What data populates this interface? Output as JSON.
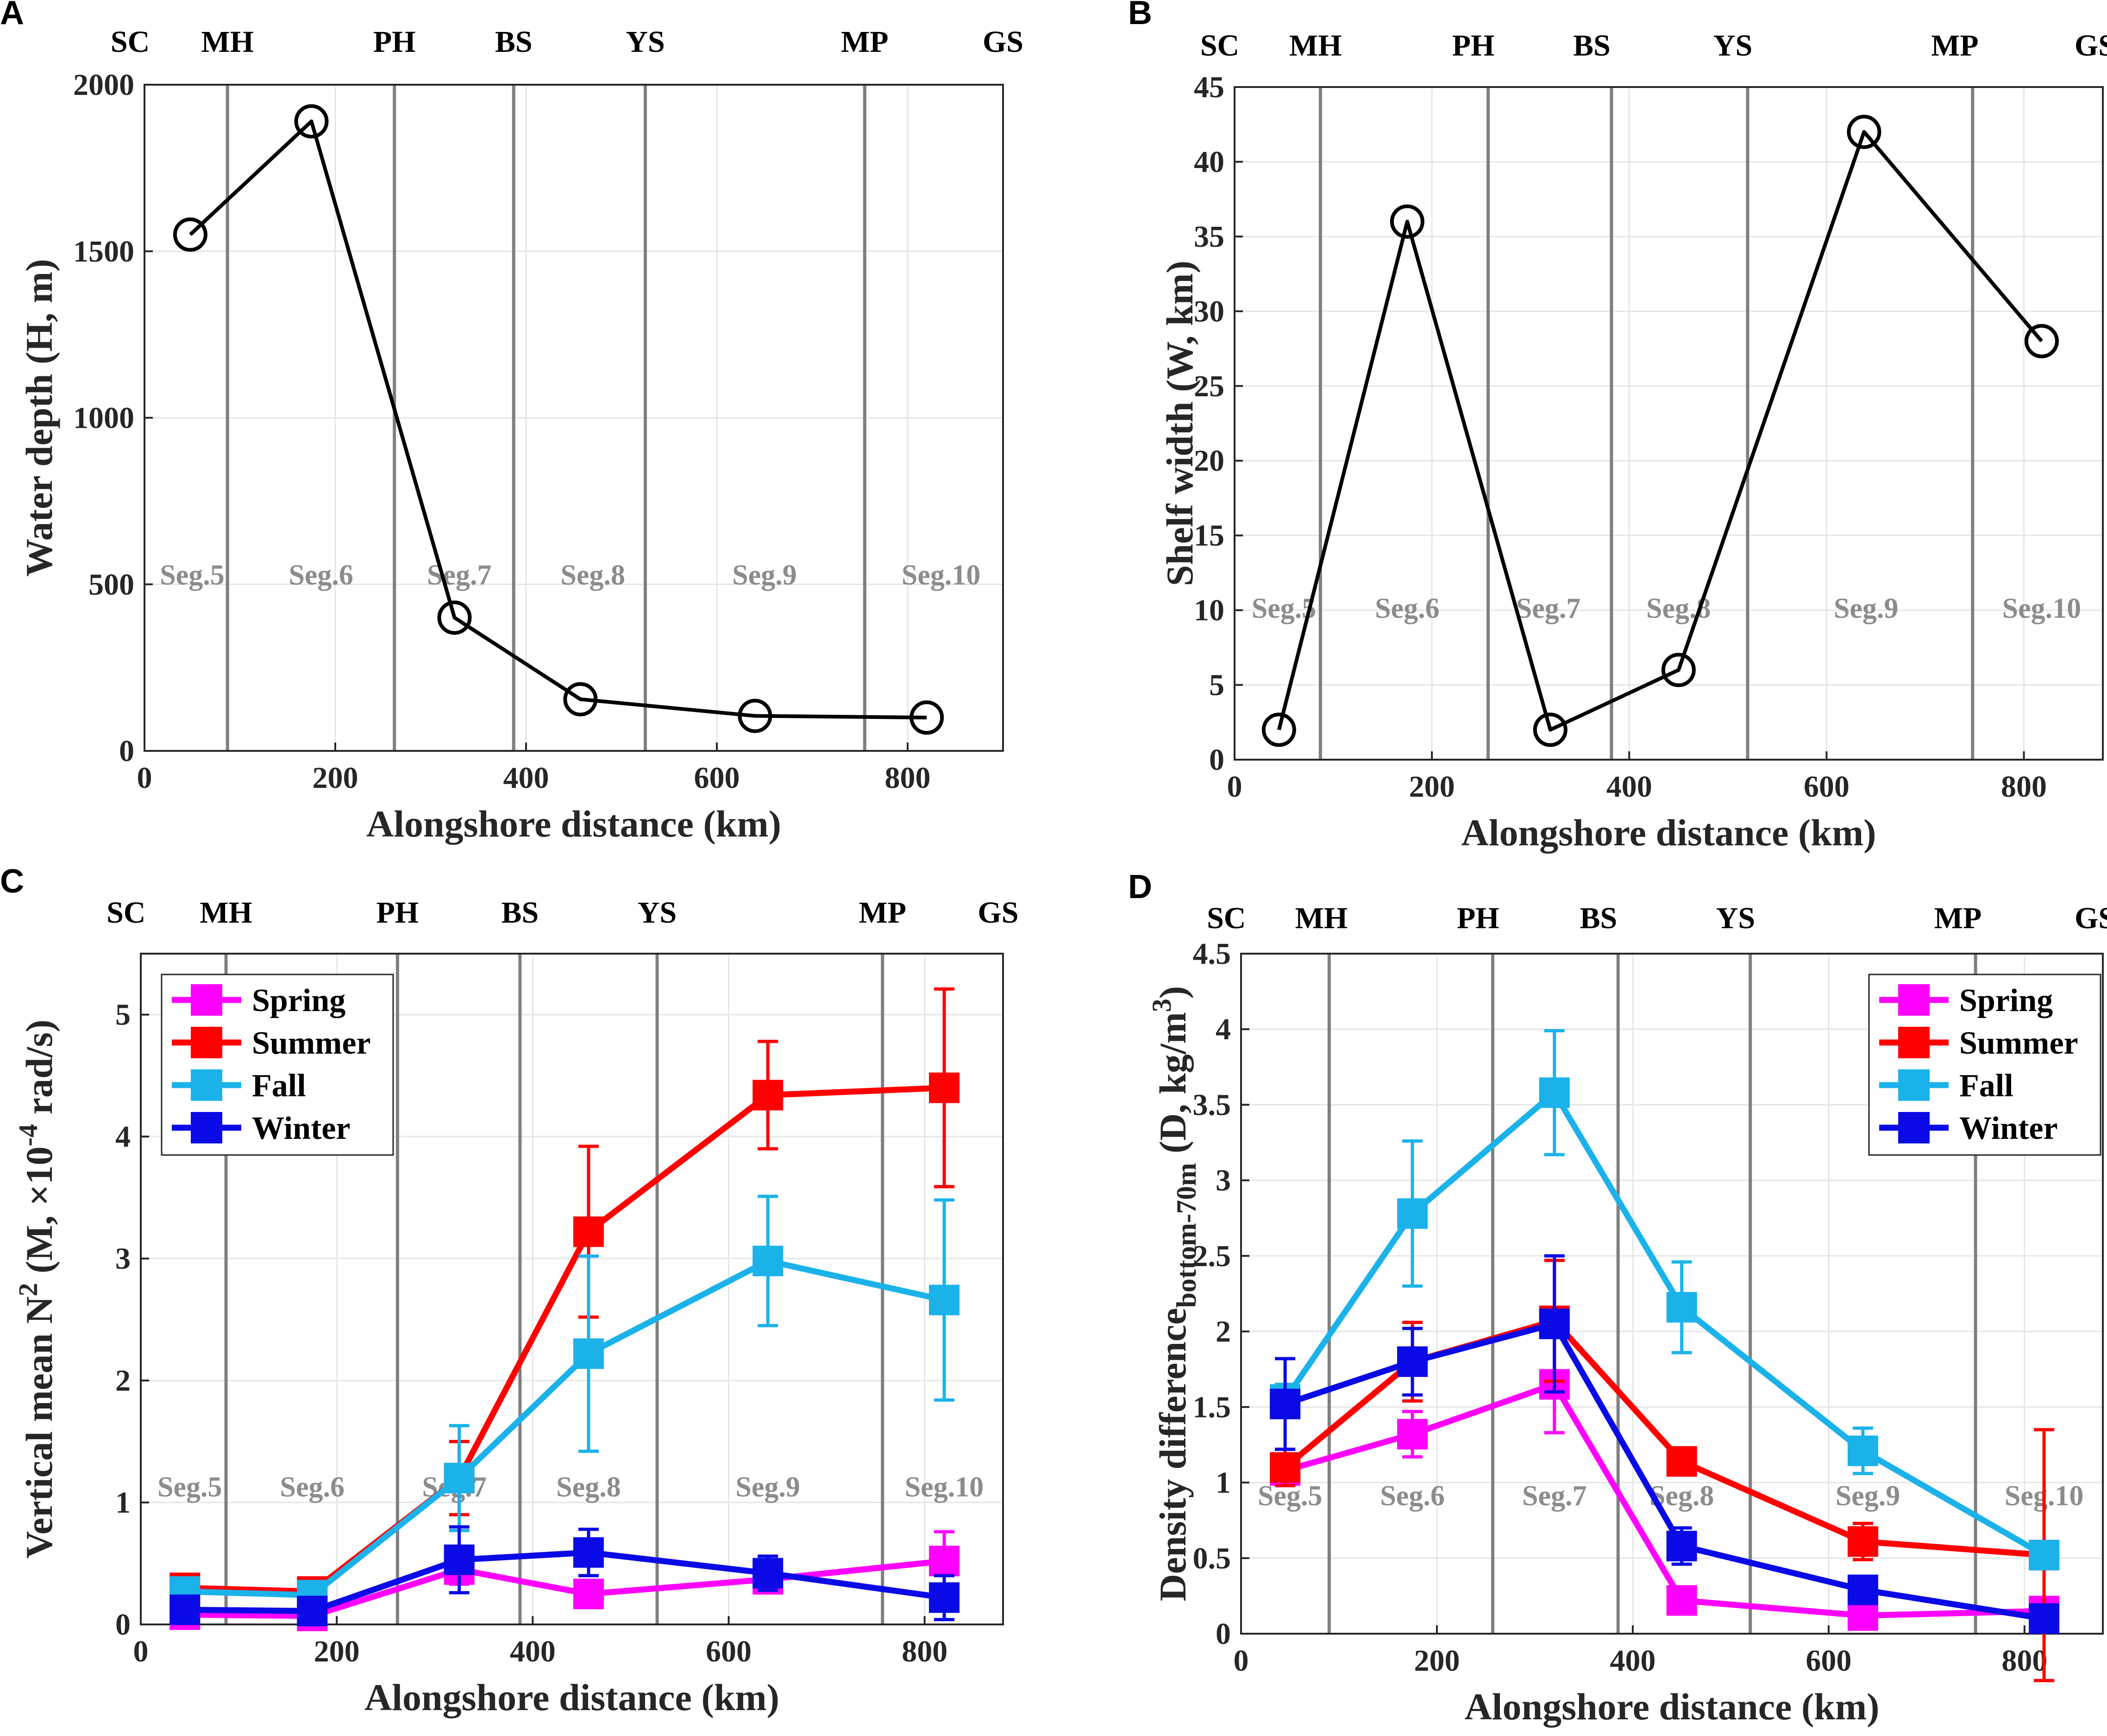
{
  "chart_data": [
    {
      "panel": "A",
      "type": "line",
      "xlabel": "Alongshore distance (km)",
      "ylabel": "Water depth (H, m)",
      "xlim": [
        0,
        900
      ],
      "ylim": [
        0,
        2000
      ],
      "xticks": [
        0,
        200,
        400,
        600,
        800
      ],
      "yticks": [
        0,
        500,
        1000,
        1500,
        2000
      ],
      "grid": true,
      "boundaries": [
        87,
        262,
        387,
        525,
        755
      ],
      "regions": [
        {
          "name": "SC",
          "x": -15
        },
        {
          "name": "MH",
          "x": 87
        },
        {
          "name": "PH",
          "x": 262
        },
        {
          "name": "BS",
          "x": 387
        },
        {
          "name": "YS",
          "x": 525
        },
        {
          "name": "MP",
          "x": 755
        },
        {
          "name": "GS",
          "x": 900
        }
      ],
      "segments": [
        {
          "label": "Seg.5",
          "x": 50
        },
        {
          "label": "Seg.6",
          "x": 185
        },
        {
          "label": "Seg.7",
          "x": 330
        },
        {
          "label": "Seg.8",
          "x": 470
        },
        {
          "label": "Seg.9",
          "x": 650
        },
        {
          "label": "Seg.10",
          "x": 835
        }
      ],
      "segment_label_y": 500,
      "series": [
        {
          "name": "",
          "marker": "circle",
          "color": "#000000",
          "x": [
            48,
            175,
            325,
            457,
            640,
            820
          ],
          "y": [
            1550,
            1890,
            400,
            155,
            105,
            100
          ]
        }
      ]
    },
    {
      "panel": "B",
      "type": "line",
      "xlabel": "Alongshore distance (km)",
      "ylabel": "Shelf width (W, km)",
      "xlim": [
        0,
        880
      ],
      "ylim": [
        0,
        45
      ],
      "xticks": [
        0,
        200,
        400,
        600,
        800
      ],
      "yticks": [
        0,
        5,
        10,
        15,
        20,
        25,
        30,
        35,
        40,
        45
      ],
      "grid": true,
      "boundaries": [
        87,
        257,
        382,
        520,
        748
      ],
      "regions": [
        {
          "name": "SC",
          "x": -15
        },
        {
          "name": "MH",
          "x": 82
        },
        {
          "name": "PH",
          "x": 242
        },
        {
          "name": "BS",
          "x": 362
        },
        {
          "name": "YS",
          "x": 505
        },
        {
          "name": "MP",
          "x": 730
        },
        {
          "name": "GS",
          "x": 872
        }
      ],
      "segments": [
        {
          "label": "Seg.5",
          "x": 50
        },
        {
          "label": "Seg.6",
          "x": 175
        },
        {
          "label": "Seg.7",
          "x": 318
        },
        {
          "label": "Seg.8",
          "x": 450
        },
        {
          "label": "Seg.9",
          "x": 640
        },
        {
          "label": "Seg.10",
          "x": 818
        }
      ],
      "segment_label_y": 9.5,
      "series": [
        {
          "name": "",
          "marker": "circle",
          "color": "#000000",
          "x": [
            45,
            175,
            320,
            450,
            638,
            818
          ],
          "y": [
            2,
            36,
            2,
            6,
            42,
            28
          ]
        }
      ]
    },
    {
      "panel": "C",
      "type": "line",
      "xlabel": "Alongshore distance (km)",
      "ylabel_pre": "Vertical mean N",
      "ylabel_sup1": "2",
      "ylabel_mid": " (M, ×10",
      "ylabel_sup2": "-4",
      "ylabel_post": " rad/s)",
      "xlim": [
        0,
        880
      ],
      "ylim": [
        0,
        5.5
      ],
      "xticks": [
        0,
        200,
        400,
        600,
        800
      ],
      "yticks": [
        0,
        1,
        2,
        3,
        4,
        5
      ],
      "grid": true,
      "boundaries": [
        87,
        262,
        387,
        527,
        757
      ],
      "regions": [
        {
          "name": "SC",
          "x": -15
        },
        {
          "name": "MH",
          "x": 87
        },
        {
          "name": "PH",
          "x": 262
        },
        {
          "name": "BS",
          "x": 387
        },
        {
          "name": "YS",
          "x": 527
        },
        {
          "name": "MP",
          "x": 757
        },
        {
          "name": "GS",
          "x": 875
        }
      ],
      "segments": [
        {
          "label": "Seg.5",
          "x": 50
        },
        {
          "label": "Seg.6",
          "x": 175
        },
        {
          "label": "Seg.7",
          "x": 320
        },
        {
          "label": "Seg.8",
          "x": 457
        },
        {
          "label": "Seg.9",
          "x": 640
        },
        {
          "label": "Seg.10",
          "x": 820
        }
      ],
      "segment_label_y": 1.05,
      "legend": "top-left",
      "series": [
        {
          "name": "Spring",
          "color": "#ff00ff",
          "marker": "square",
          "x": [
            45,
            175,
            325,
            457,
            640,
            820
          ],
          "y": [
            0.08,
            0.07,
            0.45,
            0.25,
            0.37,
            0.52
          ],
          "err": [
            0.04,
            0.04,
            0.12,
            0.1,
            0.08,
            0.24
          ]
        },
        {
          "name": "Summer",
          "color": "#ff0000",
          "marker": "square",
          "x": [
            45,
            175,
            325,
            457,
            640,
            820
          ],
          "y": [
            0.3,
            0.27,
            1.2,
            3.22,
            4.34,
            4.4
          ],
          "err": [
            0.06,
            0.06,
            0.3,
            0.7,
            0.44,
            0.81
          ]
        },
        {
          "name": "Fall",
          "color": "#1bb2ea",
          "marker": "square",
          "x": [
            45,
            175,
            325,
            457,
            640,
            820
          ],
          "y": [
            0.27,
            0.24,
            1.2,
            2.22,
            2.98,
            2.66
          ],
          "err": [
            0.05,
            0.05,
            0.43,
            0.8,
            0.53,
            0.82
          ]
        },
        {
          "name": "Winter",
          "color": "#0a0ae6",
          "marker": "square",
          "x": [
            45,
            175,
            325,
            457,
            640,
            820
          ],
          "y": [
            0.12,
            0.11,
            0.53,
            0.59,
            0.42,
            0.22
          ],
          "err": [
            0.05,
            0.05,
            0.27,
            0.19,
            0.14,
            0.18
          ]
        }
      ]
    },
    {
      "panel": "D",
      "type": "line",
      "xlabel": "Alongshore distance (km)",
      "ylabel_pre": "Density difference",
      "ylabel_sub": "bottom-70m",
      "ylabel_mid": " (D, kg/m",
      "ylabel_sup": "3",
      "ylabel_post": ")",
      "xlim": [
        0,
        880
      ],
      "ylim": [
        0,
        4.5
      ],
      "xticks": [
        0,
        200,
        400,
        600,
        800
      ],
      "yticks": [
        0,
        0.5,
        1,
        1.5,
        2,
        2.5,
        3,
        3.5,
        4,
        4.5
      ],
      "grid": true,
      "boundaries": [
        90,
        257,
        385,
        520,
        750
      ],
      "regions": [
        {
          "name": "SC",
          "x": -15
        },
        {
          "name": "MH",
          "x": 82
        },
        {
          "name": "PH",
          "x": 242
        },
        {
          "name": "BS",
          "x": 365
        },
        {
          "name": "YS",
          "x": 505
        },
        {
          "name": "MP",
          "x": 732
        },
        {
          "name": "GS",
          "x": 872
        }
      ],
      "segments": [
        {
          "label": "Seg.5",
          "x": 50
        },
        {
          "label": "Seg.6",
          "x": 175
        },
        {
          "label": "Seg.7",
          "x": 320
        },
        {
          "label": "Seg.8",
          "x": 450
        },
        {
          "label": "Seg.9",
          "x": 640
        },
        {
          "label": "Seg.10",
          "x": 820
        }
      ],
      "segment_label_y": 0.85,
      "legend": "top-right",
      "series": [
        {
          "name": "Spring",
          "color": "#ff00ff",
          "marker": "square",
          "x": [
            45,
            175,
            320,
            450,
            635,
            820
          ],
          "y": [
            1.08,
            1.32,
            1.65,
            0.22,
            0.12,
            0.15
          ],
          "err": [
            0.1,
            0.15,
            0.32,
            0.06,
            0.05,
            0.05
          ]
        },
        {
          "name": "Summer",
          "color": "#ff0000",
          "marker": "square",
          "x": [
            45,
            175,
            320,
            450,
            635,
            820
          ],
          "y": [
            1.1,
            1.8,
            2.07,
            1.14,
            0.61,
            0.52
          ],
          "err": [
            0.12,
            0.26,
            0.4,
            0.06,
            0.12,
            0.83
          ]
        },
        {
          "name": "Fall",
          "color": "#1bb2ea",
          "marker": "square",
          "x": [
            45,
            175,
            320,
            450,
            635,
            820
          ],
          "y": [
            1.55,
            2.78,
            3.58,
            2.16,
            1.21,
            0.52
          ],
          "err": [
            0.1,
            0.48,
            0.41,
            0.3,
            0.15,
            0.05
          ]
        },
        {
          "name": "Winter",
          "color": "#0a0ae6",
          "marker": "square",
          "x": [
            45,
            175,
            320,
            450,
            635,
            820
          ],
          "y": [
            1.52,
            1.8,
            2.05,
            0.58,
            0.29,
            0.1
          ],
          "err": [
            0.3,
            0.22,
            0.45,
            0.12,
            0.08,
            0.04
          ]
        }
      ]
    }
  ]
}
